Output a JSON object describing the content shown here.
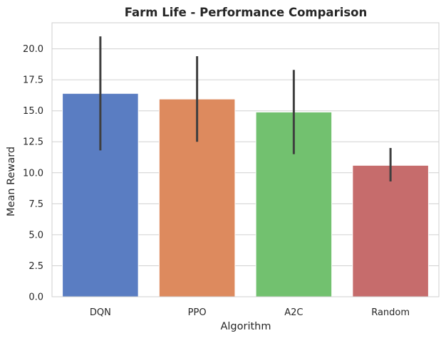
{
  "chart_data": {
    "type": "bar",
    "title": "Farm Life - Performance Comparison",
    "xlabel": "Algorithm",
    "ylabel": "Mean Reward",
    "categories": [
      "DQN",
      "PPO",
      "A2C",
      "Random"
    ],
    "values": [
      16.4,
      15.95,
      14.9,
      10.6
    ],
    "error_low": [
      11.8,
      12.5,
      11.5,
      9.3
    ],
    "error_high": [
      21.0,
      19.4,
      18.3,
      12.0
    ],
    "colors": [
      "#5a7dc2",
      "#dd8a5e",
      "#72c16f",
      "#c66c6c"
    ],
    "error_color": "#3f3f3f",
    "ylim": [
      0,
      22.1
    ],
    "yticks": [
      "0.0",
      "2.5",
      "5.0",
      "7.5",
      "10.0",
      "12.5",
      "15.0",
      "17.5",
      "20.0"
    ],
    "grid": "horizontal",
    "legend": "none"
  }
}
